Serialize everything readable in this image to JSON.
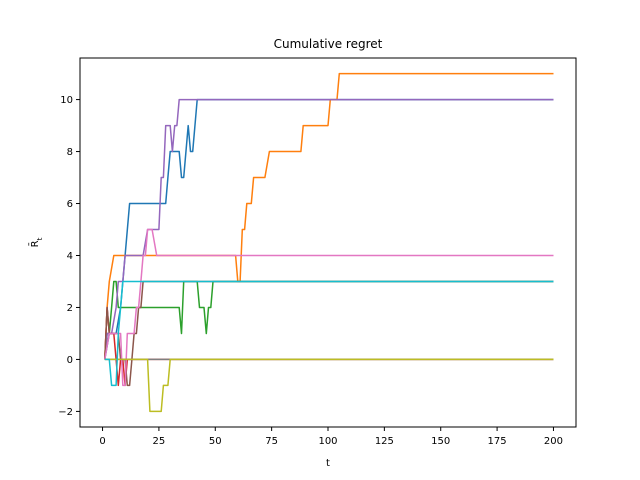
{
  "chart_data": {
    "type": "line",
    "title": "Cumulative regret",
    "xlabel": "t",
    "ylabel": "R̄",
    "ylabel_sub": "t",
    "xlim": [
      -10,
      210
    ],
    "ylim": [
      -2.6,
      11.6
    ],
    "xticks": [
      0,
      25,
      50,
      75,
      100,
      125,
      150,
      175,
      200
    ],
    "yticks": [
      -2,
      0,
      2,
      4,
      6,
      8,
      10
    ],
    "ytick_labels": [
      "−2",
      "0",
      "2",
      "4",
      "6",
      "8",
      "10"
    ],
    "grid": false,
    "legend": false,
    "series": [
      {
        "color": "#1f77b4",
        "points": [
          [
            1,
            0
          ],
          [
            3,
            1
          ],
          [
            6,
            1
          ],
          [
            8,
            2
          ],
          [
            10,
            4
          ],
          [
            12,
            6
          ],
          [
            28,
            6
          ],
          [
            29,
            7
          ],
          [
            30,
            8
          ],
          [
            34,
            8
          ],
          [
            35,
            7
          ],
          [
            36,
            7
          ],
          [
            38,
            9
          ],
          [
            39,
            8
          ],
          [
            40,
            8
          ],
          [
            42,
            10
          ],
          [
            200,
            10
          ]
        ]
      },
      {
        "color": "#ff7f0e",
        "points": [
          [
            1,
            0
          ],
          [
            2,
            2
          ],
          [
            3,
            3
          ],
          [
            5,
            4
          ],
          [
            59,
            4
          ],
          [
            60,
            3
          ],
          [
            61,
            3
          ],
          [
            62,
            5
          ],
          [
            63,
            5
          ],
          [
            64,
            6
          ],
          [
            66,
            6
          ],
          [
            67,
            7
          ],
          [
            72,
            7
          ],
          [
            74,
            8
          ],
          [
            88,
            8
          ],
          [
            89,
            9
          ],
          [
            100,
            9
          ],
          [
            101,
            10
          ],
          [
            104,
            10
          ],
          [
            105,
            11
          ],
          [
            200,
            11
          ]
        ]
      },
      {
        "color": "#2ca02c",
        "points": [
          [
            1,
            0
          ],
          [
            2,
            1
          ],
          [
            3,
            1
          ],
          [
            4,
            2
          ],
          [
            5,
            3
          ],
          [
            6,
            3
          ],
          [
            7,
            2
          ],
          [
            9,
            2
          ],
          [
            34,
            2
          ],
          [
            35,
            1
          ],
          [
            36,
            3
          ],
          [
            42,
            3
          ],
          [
            43,
            2
          ],
          [
            45,
            2
          ],
          [
            46,
            1
          ],
          [
            47,
            2
          ],
          [
            48,
            2
          ],
          [
            49,
            3
          ],
          [
            200,
            3
          ]
        ]
      },
      {
        "color": "#d62728",
        "points": [
          [
            1,
            0
          ],
          [
            2,
            2
          ],
          [
            3,
            1
          ],
          [
            5,
            1
          ],
          [
            6,
            0
          ],
          [
            7,
            -1
          ],
          [
            8,
            0
          ],
          [
            9,
            0
          ],
          [
            10,
            -1
          ],
          [
            11,
            0
          ],
          [
            200,
            0
          ]
        ]
      },
      {
        "color": "#9467bd",
        "points": [
          [
            1,
            0
          ],
          [
            2,
            1
          ],
          [
            4,
            1
          ],
          [
            6,
            2
          ],
          [
            7,
            3
          ],
          [
            9,
            3
          ],
          [
            10,
            4
          ],
          [
            18,
            4
          ],
          [
            20,
            5
          ],
          [
            25,
            5
          ],
          [
            26,
            7
          ],
          [
            27,
            7
          ],
          [
            28,
            9
          ],
          [
            30,
            9
          ],
          [
            31,
            8
          ],
          [
            32,
            9
          ],
          [
            33,
            9
          ],
          [
            34,
            10
          ],
          [
            200,
            10
          ]
        ]
      },
      {
        "color": "#8c564b",
        "points": [
          [
            1,
            0
          ],
          [
            2,
            2
          ],
          [
            3,
            1
          ],
          [
            7,
            1
          ],
          [
            8,
            0
          ],
          [
            10,
            0
          ],
          [
            11,
            -1
          ],
          [
            12,
            -1
          ],
          [
            13,
            0
          ],
          [
            14,
            1
          ],
          [
            15,
            1
          ],
          [
            16,
            2
          ],
          [
            17,
            2
          ],
          [
            18,
            3
          ],
          [
            200,
            3
          ]
        ]
      },
      {
        "color": "#e377c2",
        "points": [
          [
            1,
            0
          ],
          [
            3,
            1
          ],
          [
            8,
            1
          ],
          [
            9,
            -1
          ],
          [
            10,
            -1
          ],
          [
            11,
            1
          ],
          [
            14,
            1
          ],
          [
            15,
            2
          ],
          [
            16,
            2
          ],
          [
            17,
            3
          ],
          [
            18,
            4
          ],
          [
            19,
            4
          ],
          [
            20,
            5
          ],
          [
            22,
            5
          ],
          [
            24,
            4
          ],
          [
            200,
            4
          ]
        ]
      },
      {
        "color": "#7f7f7f",
        "points": [
          [
            1,
            0
          ],
          [
            200,
            0
          ]
        ]
      },
      {
        "color": "#bcbd22",
        "points": [
          [
            1,
            0
          ],
          [
            20,
            0
          ],
          [
            21,
            -2
          ],
          [
            26,
            -2
          ],
          [
            27,
            -1
          ],
          [
            29,
            -1
          ],
          [
            30,
            0
          ],
          [
            200,
            0
          ]
        ]
      },
      {
        "color": "#17becf",
        "points": [
          [
            1,
            0
          ],
          [
            3,
            0
          ],
          [
            4,
            -1
          ],
          [
            6,
            -1
          ],
          [
            7,
            1
          ],
          [
            8,
            2
          ],
          [
            9,
            3
          ],
          [
            200,
            3
          ]
        ]
      }
    ]
  }
}
